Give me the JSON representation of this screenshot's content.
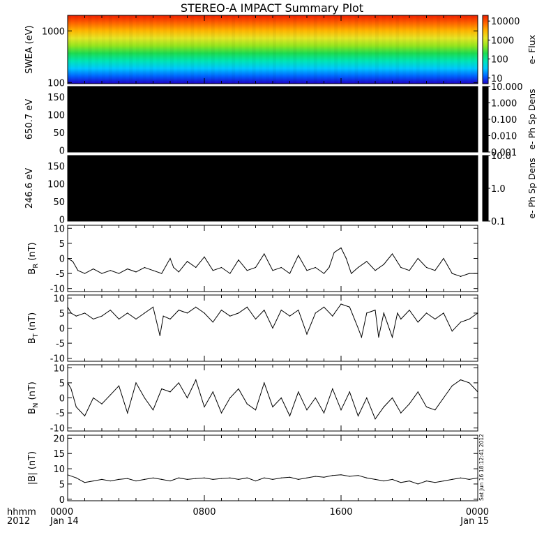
{
  "title": "STEREO-A IMPACT Summary Plot",
  "time_axis": {
    "ticks": [
      {
        "value": 0,
        "label": "0000",
        "sub": "Jan 14"
      },
      {
        "value": 8,
        "label": "0800",
        "sub": ""
      },
      {
        "value": 16,
        "label": "1600",
        "sub": ""
      },
      {
        "value": 24,
        "label": "0000",
        "sub": "Jan 15"
      }
    ],
    "unit_label": "hhmm",
    "year_label": "2012",
    "range_hours": [
      0,
      24
    ]
  },
  "timestamp": "Sat Jun 16 18:12:41 2012",
  "colors": {
    "trace": "#000000",
    "frame": "#000000",
    "background": "#ffffff"
  },
  "chart_data": [
    {
      "type": "heatmap",
      "ylabel": "SWEA (eV)",
      "yscale": "log",
      "ylim": [
        95,
        2000
      ],
      "yticks": [
        "100",
        "1000"
      ],
      "ytick_values": [
        100,
        1000
      ],
      "colorbar": {
        "label": "e- Flux",
        "scale": "log",
        "ticks": [
          "10",
          "100",
          "1000",
          "10000"
        ],
        "tick_values": [
          10,
          100,
          1000,
          10000
        ],
        "range": [
          5,
          20000
        ],
        "colormap": [
          "#1e00c8",
          "#0064ff",
          "#00c8ff",
          "#00e6b4",
          "#1edc50",
          "#96e61e",
          "#e6e628",
          "#ffb400",
          "#ff6400",
          "#f01e00"
        ]
      },
      "energy_flux_profile": [
        {
          "energy": 100,
          "flux": 14000
        },
        {
          "energy": 200,
          "flux": 7000
        },
        {
          "energy": 300,
          "flux": 3000
        },
        {
          "energy": 500,
          "flux": 1000
        },
        {
          "energy": 800,
          "flux": 300
        },
        {
          "energy": 1000,
          "flux": 150
        },
        {
          "energy": 1300,
          "flux": 60
        },
        {
          "energy": 1600,
          "flux": 25
        },
        {
          "energy": 1800,
          "flux": 12
        }
      ]
    },
    {
      "type": "heatmap",
      "ylabel": "650.7 eV",
      "yticks": [
        "0",
        "50",
        "100",
        "150"
      ],
      "ytick_values": [
        0,
        50,
        100,
        150
      ],
      "ylim": [
        -5,
        180
      ],
      "fill": "#000000",
      "colorbar": {
        "label": "e- Ph Sp Dens",
        "scale": "log",
        "ticks": [
          "10.000",
          "1.000",
          "0.100",
          "0.010",
          "0.001"
        ],
        "tick_values": [
          10,
          1,
          0.1,
          0.01,
          0.001
        ],
        "range": [
          0.001,
          10
        ],
        "fill": "#000000"
      }
    },
    {
      "type": "heatmap",
      "ylabel": "246.6 eV",
      "yticks": [
        "0",
        "50",
        "100",
        "150"
      ],
      "ytick_values": [
        0,
        50,
        100,
        150
      ],
      "ylim": [
        -5,
        180
      ],
      "fill": "#000000",
      "colorbar": {
        "label": "e- Ph Sp Dens",
        "scale": "log",
        "ticks": [
          "10.0",
          "1.0",
          "0.1"
        ],
        "tick_values": [
          10,
          1,
          0.1
        ],
        "range": [
          0.1,
          10
        ],
        "fill": "#000000"
      }
    },
    {
      "type": "line",
      "ylabel_main": "B",
      "ylabel_sub": "R",
      "ylabel_unit": " (nT)",
      "ylim": [
        -11,
        11
      ],
      "yticks": [
        "-10",
        "-5",
        "0",
        "5",
        "10"
      ],
      "ytick_values": [
        -10,
        -5,
        0,
        5,
        10
      ],
      "x": [
        0,
        0.3,
        0.6,
        1,
        1.5,
        2,
        2.5,
        3,
        3.5,
        4,
        4.5,
        5,
        5.5,
        6,
        6.2,
        6.5,
        7,
        7.5,
        8,
        8.5,
        9,
        9.5,
        10,
        10.5,
        11,
        11.5,
        12,
        12.5,
        13,
        13.5,
        14,
        14.5,
        15,
        15.3,
        15.6,
        16,
        16.3,
        16.6,
        17,
        17.5,
        18,
        18.5,
        19,
        19.5,
        20,
        20.5,
        21,
        21.5,
        22,
        22.5,
        23,
        23.5,
        24
      ],
      "y": [
        0,
        -1,
        -4,
        -5,
        -3.5,
        -5,
        -4,
        -5,
        -3.5,
        -4.5,
        -3,
        -4,
        -5,
        0,
        -3,
        -4.5,
        -1,
        -3,
        0.5,
        -4,
        -3,
        -5,
        -0.5,
        -4,
        -3,
        1.5,
        -4,
        -3,
        -5,
        1,
        -4,
        -3,
        -5,
        -3,
        2,
        3.5,
        0,
        -5,
        -3,
        -1,
        -4,
        -2,
        1.5,
        -3,
        -4,
        0,
        -3,
        -4,
        0,
        -5,
        -6,
        -5,
        -5
      ]
    },
    {
      "type": "line",
      "ylabel_main": "B",
      "ylabel_sub": "T",
      "ylabel_unit": " (nT)",
      "ylim": [
        -11,
        11
      ],
      "yticks": [
        "-10",
        "-5",
        "0",
        "5",
        "10"
      ],
      "ytick_values": [
        -10,
        -5,
        0,
        5,
        10
      ],
      "x": [
        0,
        0.2,
        0.5,
        1,
        1.5,
        2,
        2.5,
        3,
        3.5,
        4,
        4.5,
        5,
        5.4,
        5.6,
        6,
        6.5,
        7,
        7.5,
        8,
        8.5,
        9,
        9.5,
        10,
        10.5,
        11,
        11.5,
        12,
        12.5,
        13,
        13.5,
        14,
        14.5,
        15,
        15.5,
        16,
        16.5,
        17,
        17.2,
        17.5,
        18,
        18.2,
        18.5,
        19,
        19.3,
        19.5,
        20,
        20.5,
        21,
        21.5,
        22,
        22.5,
        23,
        23.5,
        24
      ],
      "y": [
        7,
        5,
        4,
        5,
        3,
        4,
        6,
        3,
        5,
        3,
        5,
        7,
        -2.5,
        4,
        3,
        6,
        5,
        7,
        5,
        2,
        6,
        4,
        5,
        7,
        3,
        6,
        0,
        6,
        4,
        6,
        -2,
        5,
        7,
        4,
        8,
        7,
        0,
        -3,
        5,
        6,
        -3,
        5,
        -3,
        5,
        3,
        6,
        2,
        5,
        3,
        5,
        -1,
        2,
        3,
        5
      ]
    },
    {
      "type": "line",
      "ylabel_main": "B",
      "ylabel_sub": "N",
      "ylabel_unit": " (nT)",
      "ylim": [
        -11,
        11
      ],
      "yticks": [
        "-10",
        "-5",
        "0",
        "5",
        "10"
      ],
      "ytick_values": [
        -10,
        -5,
        0,
        5,
        10
      ],
      "x": [
        0,
        0.2,
        0.5,
        1,
        1.5,
        2,
        2.5,
        3,
        3.5,
        4,
        4.5,
        5,
        5.5,
        6,
        6.5,
        7,
        7.5,
        8,
        8.5,
        9,
        9.5,
        10,
        10.5,
        11,
        11.5,
        12,
        12.5,
        13,
        13.5,
        14,
        14.5,
        15,
        15.5,
        16,
        16.5,
        17,
        17.5,
        18,
        18.5,
        19,
        19.5,
        20,
        20.5,
        21,
        21.5,
        22,
        22.5,
        23,
        23.5,
        24
      ],
      "y": [
        5,
        3,
        -3,
        -6,
        0,
        -2,
        1,
        4,
        -5,
        5,
        0,
        -4,
        3,
        2,
        5,
        0,
        6,
        -3,
        2,
        -5,
        0,
        3,
        -2,
        -4,
        5,
        -3,
        0,
        -6,
        2,
        -4,
        0,
        -5,
        3,
        -4,
        2,
        -6,
        0,
        -7,
        -3,
        0,
        -5,
        -2,
        2,
        -3,
        -4,
        0,
        4,
        6,
        5,
        2
      ]
    },
    {
      "type": "line",
      "ylabel": "|B| (nT)",
      "ylim": [
        -0.5,
        21
      ],
      "yticks": [
        "0",
        "5",
        "10",
        "15",
        "20"
      ],
      "ytick_values": [
        0,
        5,
        10,
        15,
        20
      ],
      "x": [
        0,
        0.5,
        1,
        1.5,
        2,
        2.5,
        3,
        3.5,
        4,
        4.5,
        5,
        5.5,
        6,
        6.5,
        7,
        7.5,
        8,
        8.5,
        9,
        9.5,
        10,
        10.5,
        11,
        11.5,
        12,
        12.5,
        13,
        13.5,
        14,
        14.5,
        15,
        15.5,
        16,
        16.5,
        17,
        17.5,
        18,
        18.5,
        19,
        19.5,
        20,
        20.5,
        21,
        21.5,
        22,
        22.5,
        23,
        23.5,
        24
      ],
      "y": [
        8,
        7,
        5.5,
        6,
        6.5,
        6,
        6.5,
        6.8,
        6,
        6.5,
        7,
        6.5,
        6,
        7,
        6.5,
        6.8,
        7,
        6.5,
        6.8,
        7,
        6.5,
        7,
        6,
        7,
        6.5,
        7,
        7.2,
        6.5,
        7,
        7.5,
        7.2,
        7.8,
        8,
        7.5,
        7.8,
        7,
        6.5,
        6,
        6.5,
        5.5,
        6,
        5,
        6,
        5.5,
        6,
        6.5,
        7,
        6.5,
        7
      ]
    }
  ]
}
